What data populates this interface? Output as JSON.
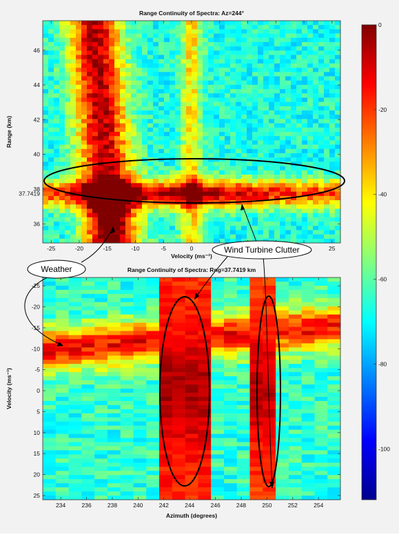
{
  "chart_data": [
    {
      "type": "heatmap",
      "title": "Range Continuity of Spectra: Az=244°",
      "xlabel": "Velocity (ms⁻¹)",
      "ylabel": "Range (km)",
      "xlim": [
        -26.5,
        26.5
      ],
      "ylim": [
        34.9,
        47.7
      ],
      "x_ticks": [
        "-25",
        "-20",
        "-15",
        "-10",
        "-5",
        "0",
        "5",
        "10",
        "15",
        "20",
        "25"
      ],
      "x_tick_values": [
        -25,
        -20,
        -15,
        -10,
        -5,
        0,
        5,
        10,
        15,
        20,
        25
      ],
      "y_ticks": [
        "36",
        "38",
        "40",
        "42",
        "44",
        "46"
      ],
      "y_tick_values": [
        36,
        38,
        40,
        42,
        44,
        46
      ],
      "highlight_tick": {
        "label": "37.7419",
        "value": 37.7419,
        "color": "#e02020"
      },
      "features": {
        "weather_band_center_velocity": [
          -13,
          -14,
          -16
        ],
        "clutter_range_km": 37.74,
        "zero_velocity_line": 0
      }
    },
    {
      "type": "heatmap",
      "title": "Range Continuity of Spectra: Rng=37.7419 km",
      "xlabel": "Azimuth (degrees)",
      "ylabel": "Velocity (ms⁻¹)",
      "xlim": [
        232.6,
        255.7
      ],
      "ylim": [
        -27,
        26
      ],
      "y_inverted": true,
      "x_ticks": [
        "234",
        "236",
        "238",
        "240",
        "242",
        "244",
        "246",
        "248",
        "250",
        "252",
        "254"
      ],
      "x_tick_values": [
        234,
        236,
        238,
        240,
        242,
        244,
        246,
        248,
        250,
        252,
        254
      ],
      "highlight_tick": {
        "label": "244",
        "value": 244,
        "color": "#e02020"
      },
      "y_ticks": [
        "-25",
        "-20",
        "-15",
        "-10",
        "-5",
        "0",
        "5",
        "10",
        "15",
        "20",
        "25"
      ],
      "y_tick_values": [
        -25,
        -20,
        -15,
        -10,
        -5,
        0,
        5,
        10,
        15,
        20,
        25
      ],
      "features": {
        "weather_velocity": -10,
        "clutter_azimuths": [
          [
            241.5,
            245.5
          ],
          [
            249,
            251
          ]
        ]
      }
    }
  ],
  "colorbar": {
    "ticks": [
      "0",
      "-20",
      "-40",
      "-60",
      "-80",
      "-100"
    ],
    "tick_values": [
      0,
      -20,
      -40,
      -60,
      -80,
      -100
    ],
    "range": [
      -112,
      0
    ],
    "colormap": "jet"
  },
  "annotations": {
    "weather": "Weather",
    "clutter": "Wind Turbine Clutter"
  }
}
